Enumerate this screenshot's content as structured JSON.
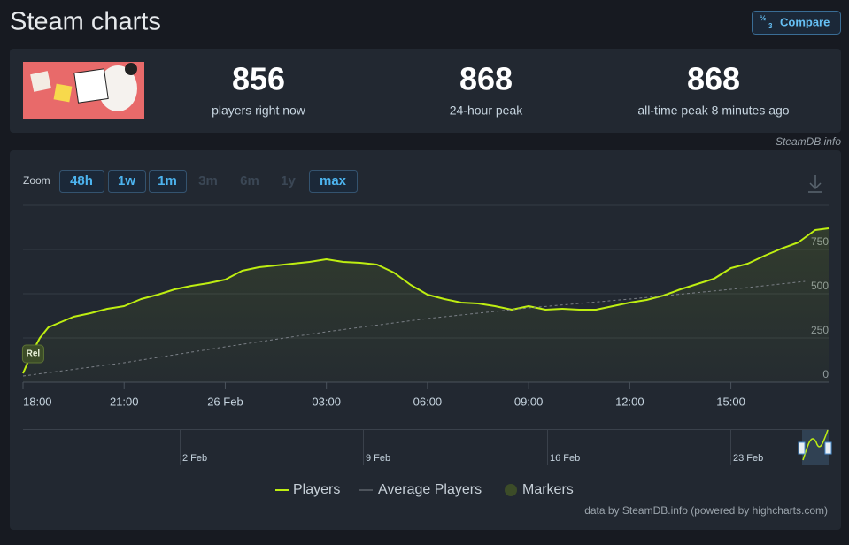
{
  "header": {
    "title": "Steam charts",
    "compare": "Compare"
  },
  "stats": [
    {
      "value": 856,
      "label": "players right now"
    },
    {
      "value": 868,
      "label": "24-hour peak"
    },
    {
      "value": 868,
      "label": "all-time peak 8 minutes ago"
    }
  ],
  "attribution": "SteamDB.info",
  "zoom": {
    "label": "Zoom",
    "buttons": [
      {
        "label": "48h",
        "enabled": true
      },
      {
        "label": "1w",
        "enabled": true
      },
      {
        "label": "1m",
        "enabled": true
      },
      {
        "label": "3m",
        "enabled": false
      },
      {
        "label": "6m",
        "enabled": false
      },
      {
        "label": "1y",
        "enabled": false
      },
      {
        "label": "max",
        "enabled": true
      }
    ]
  },
  "chart_data": {
    "type": "line",
    "xlim": [
      0,
      23.9
    ],
    "xticks": [
      {
        "value": 0,
        "label": "18:00"
      },
      {
        "value": 3,
        "label": "21:00"
      },
      {
        "value": 6,
        "label": "26 Feb"
      },
      {
        "value": 9,
        "label": "03:00"
      },
      {
        "value": 12,
        "label": "06:00"
      },
      {
        "value": 15,
        "label": "09:00"
      },
      {
        "value": 18,
        "label": "12:00"
      },
      {
        "value": 21,
        "label": "15:00"
      }
    ],
    "ylim": [
      0,
      1000
    ],
    "yticks": [
      0,
      250,
      500,
      750
    ],
    "grid": true,
    "series": [
      {
        "name": "Players",
        "color": "#beee11",
        "x": [
          0,
          0.25,
          0.5,
          0.75,
          1,
          1.5,
          2,
          2.5,
          3,
          3.5,
          4,
          4.5,
          5,
          5.5,
          6,
          6.5,
          7,
          7.5,
          8,
          8.5,
          9,
          9.5,
          10,
          10.5,
          11,
          11.5,
          12,
          12.5,
          13,
          13.5,
          14,
          14.5,
          15,
          15.5,
          16,
          16.5,
          17,
          17.5,
          18,
          18.5,
          19,
          19.5,
          20,
          20.5,
          21,
          21.5,
          22,
          22.5,
          23,
          23.5,
          23.9
        ],
        "values": [
          50,
          160,
          250,
          310,
          330,
          370,
          390,
          415,
          430,
          470,
          495,
          525,
          545,
          560,
          580,
          630,
          650,
          660,
          670,
          680,
          695,
          680,
          675,
          665,
          620,
          550,
          495,
          470,
          450,
          445,
          430,
          410,
          430,
          410,
          415,
          410,
          410,
          430,
          450,
          465,
          490,
          525,
          555,
          585,
          645,
          670,
          715,
          755,
          790,
          860,
          870
        ]
      },
      {
        "name": "Average Players",
        "color": "#7a7f86",
        "x": [
          0,
          3,
          6,
          9,
          12,
          15,
          18,
          21,
          23.2
        ],
        "values": [
          35,
          110,
          200,
          285,
          360,
          420,
          470,
          525,
          570
        ]
      }
    ],
    "markers": {
      "name": "Markers",
      "color": "#3c4c28",
      "items": [
        {
          "x": 0.3,
          "label": "Rel"
        }
      ]
    },
    "navigator": {
      "labels": [
        "2 Feb",
        "9 Feb",
        "16 Feb",
        "23 Feb"
      ]
    },
    "credits": "data by SteamDB.info (powered by highcharts.com)"
  }
}
